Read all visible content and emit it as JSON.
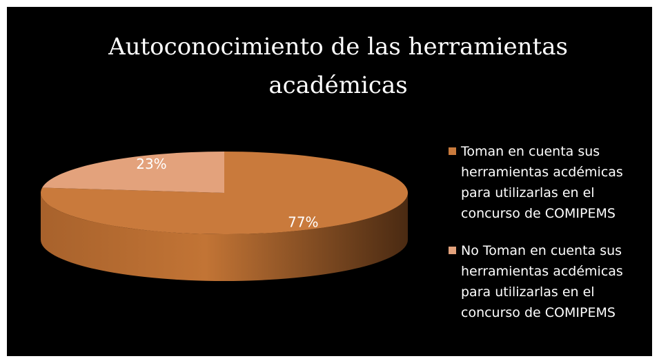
{
  "chart_data": {
    "type": "pie",
    "title": "Autoconocimiento de las herramientas académicas",
    "categories": [
      "Toman en cuenta sus herramientas acdémicas para utilizarlas en el concurso de COMIPEMS",
      "No Toman en cuenta sus herramientas acdémicas para utilizarlas en el concurso de COMIPEMS"
    ],
    "values": [
      77,
      23
    ],
    "value_labels": [
      "77%",
      "23%"
    ],
    "colors": [
      "#c97a3c",
      "#e3a27c"
    ],
    "legend": "right"
  }
}
